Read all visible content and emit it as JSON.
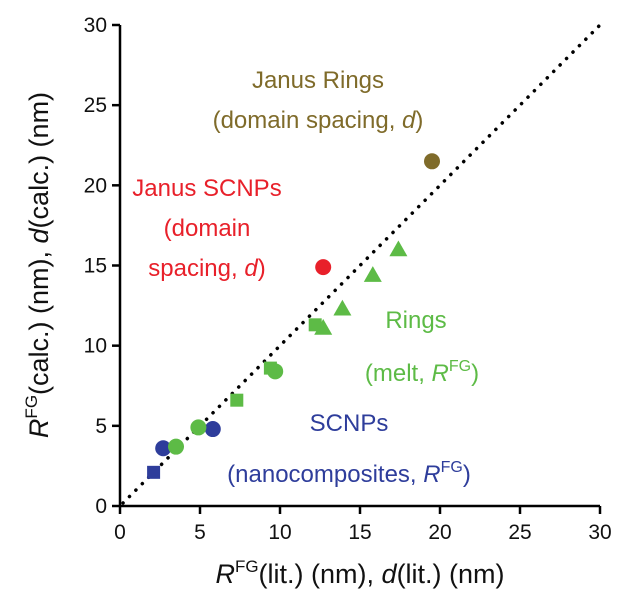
{
  "chart_data": {
    "type": "scatter",
    "xlim": [
      0,
      30
    ],
    "ylim": [
      0,
      30
    ],
    "x_ticks": [
      0,
      5,
      10,
      15,
      20,
      25,
      30
    ],
    "y_ticks": [
      0,
      5,
      10,
      15,
      20,
      25,
      30
    ],
    "x_tick_labels": [
      "0",
      "5",
      "10",
      "15",
      "20",
      "25",
      "30"
    ],
    "y_tick_labels": [
      "0",
      "5",
      "10",
      "15",
      "20",
      "25",
      "30"
    ],
    "xlabel": {
      "main": "R",
      "sup": "FG",
      "rest1": "(lit.) (nm), ",
      "italic": "d",
      "rest2": "(lit.) (nm)"
    },
    "ylabel": {
      "main": "R",
      "sup": "FG",
      "rest1": "(calc.) (nm), ",
      "italic": "d",
      "rest2": "(calc.) (nm)"
    },
    "grid": false,
    "legend": "none",
    "reference_line": {
      "style": "dotted",
      "from": [
        0,
        0
      ],
      "to": [
        30,
        30
      ],
      "color": "#000000"
    },
    "series": [
      {
        "name": "SCNPs (nanocomposites, RFG)",
        "color": "#2e3d9b",
        "marker_groups": [
          {
            "marker": "square",
            "points": [
              [
                2.1,
                2.1
              ]
            ]
          },
          {
            "marker": "circle",
            "points": [
              [
                2.7,
                3.6
              ],
              [
                5.8,
                4.8
              ]
            ]
          }
        ]
      },
      {
        "name": "Rings (melt, RFG)",
        "color": "#5dbb46",
        "marker_groups": [
          {
            "marker": "circle",
            "points": [
              [
                3.5,
                3.7
              ],
              [
                4.9,
                4.9
              ],
              [
                9.7,
                8.4
              ]
            ]
          },
          {
            "marker": "square",
            "points": [
              [
                7.3,
                6.6
              ],
              [
                9.4,
                8.6
              ],
              [
                12.2,
                11.3
              ]
            ]
          },
          {
            "marker": "triangle",
            "points": [
              [
                12.7,
                11.1
              ],
              [
                13.9,
                12.3
              ],
              [
                15.8,
                14.4
              ],
              [
                17.4,
                16.0
              ]
            ]
          }
        ]
      },
      {
        "name": "Janus SCNPs (domain spacing, d)",
        "color": "#e8202a",
        "marker_groups": [
          {
            "marker": "circle",
            "points": [
              [
                12.7,
                14.9
              ]
            ]
          }
        ]
      },
      {
        "name": "Janus Rings (domain spacing, d)",
        "color": "#7f6b2a",
        "marker_groups": [
          {
            "marker": "circle",
            "points": [
              [
                19.5,
                21.5
              ]
            ]
          }
        ]
      }
    ],
    "annotations": {
      "janus_rings": {
        "color": "#7f6b2a",
        "line1": "Janus Rings",
        "line2_pre": "(domain spacing, ",
        "line2_italic": "d",
        "line2_post": ")"
      },
      "janus_scnps": {
        "color": "#e8202a",
        "line1": "Janus SCNPs",
        "line2": "(domain",
        "line3_pre": "spacing, ",
        "line3_italic": "d",
        "line3_post": ")"
      },
      "rings": {
        "color": "#5dbb46",
        "line1": "Rings",
        "line2_pre": "(melt, ",
        "line2_italic": "R",
        "line2_sup": "FG",
        "line2_post": ")"
      },
      "scnps": {
        "color": "#2e3d9b",
        "line1": "SCNPs",
        "line2_pre": "(nanocomposites, ",
        "line2_italic": "R",
        "line2_sup": "FG",
        "line2_post": ")"
      }
    }
  }
}
